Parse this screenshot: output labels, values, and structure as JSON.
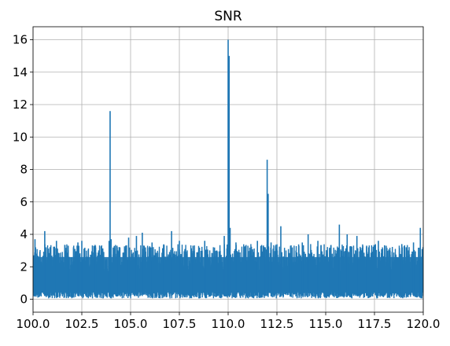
{
  "chart_data": {
    "type": "line",
    "title": "SNR",
    "xlabel": "",
    "ylabel": "",
    "xlim": [
      100.0,
      120.0
    ],
    "ylim": [
      -0.8,
      16.8
    ],
    "xticks": [
      100.0,
      102.5,
      105.0,
      107.5,
      110.0,
      112.5,
      115.0,
      117.5,
      120.0
    ],
    "xtick_labels": [
      "100.0",
      "102.5",
      "105.0",
      "107.5",
      "110.0",
      "112.5",
      "115.0",
      "117.5",
      "120.0"
    ],
    "yticks": [
      0,
      2,
      4,
      6,
      8,
      10,
      12,
      14,
      16
    ],
    "ytick_labels": [
      "0",
      "2",
      "4",
      "6",
      "8",
      "10",
      "12",
      "14",
      "16"
    ],
    "grid": true,
    "line_color": "#1f77b4",
    "series": [
      {
        "x": [
          100.0,
          100.1,
          100.6,
          101.2,
          101.8,
          102.3,
          102.5,
          103.2,
          103.9,
          103.95,
          104.0,
          104.3,
          104.9,
          105.3,
          105.6,
          106.1,
          106.7,
          107.1,
          107.5,
          108.2,
          108.8,
          109.4,
          109.8,
          110.0,
          110.05,
          110.1,
          110.4,
          110.9,
          111.5,
          111.9,
          112.0,
          112.05,
          112.2,
          112.7,
          113.2,
          113.8,
          114.1,
          114.6,
          115.2,
          115.7,
          116.1,
          116.6,
          117.1,
          117.7,
          118.3,
          118.9,
          119.5,
          119.85,
          120.0
        ],
        "y": [
          1.5,
          3.7,
          4.2,
          3.6,
          3.3,
          3.5,
          3.6,
          3.3,
          3.6,
          11.6,
          3.7,
          3.3,
          3.8,
          3.9,
          4.1,
          3.5,
          3.3,
          4.2,
          3.6,
          3.3,
          3.6,
          3.0,
          3.9,
          16.0,
          15.0,
          4.4,
          3.5,
          3.3,
          3.6,
          3.2,
          8.6,
          6.5,
          3.5,
          4.5,
          3.3,
          3.5,
          4.0,
          3.6,
          3.1,
          4.6,
          4.0,
          3.9,
          3.3,
          3.6,
          3.0,
          3.4,
          3.5,
          4.4,
          1.5
        ]
      }
    ]
  }
}
